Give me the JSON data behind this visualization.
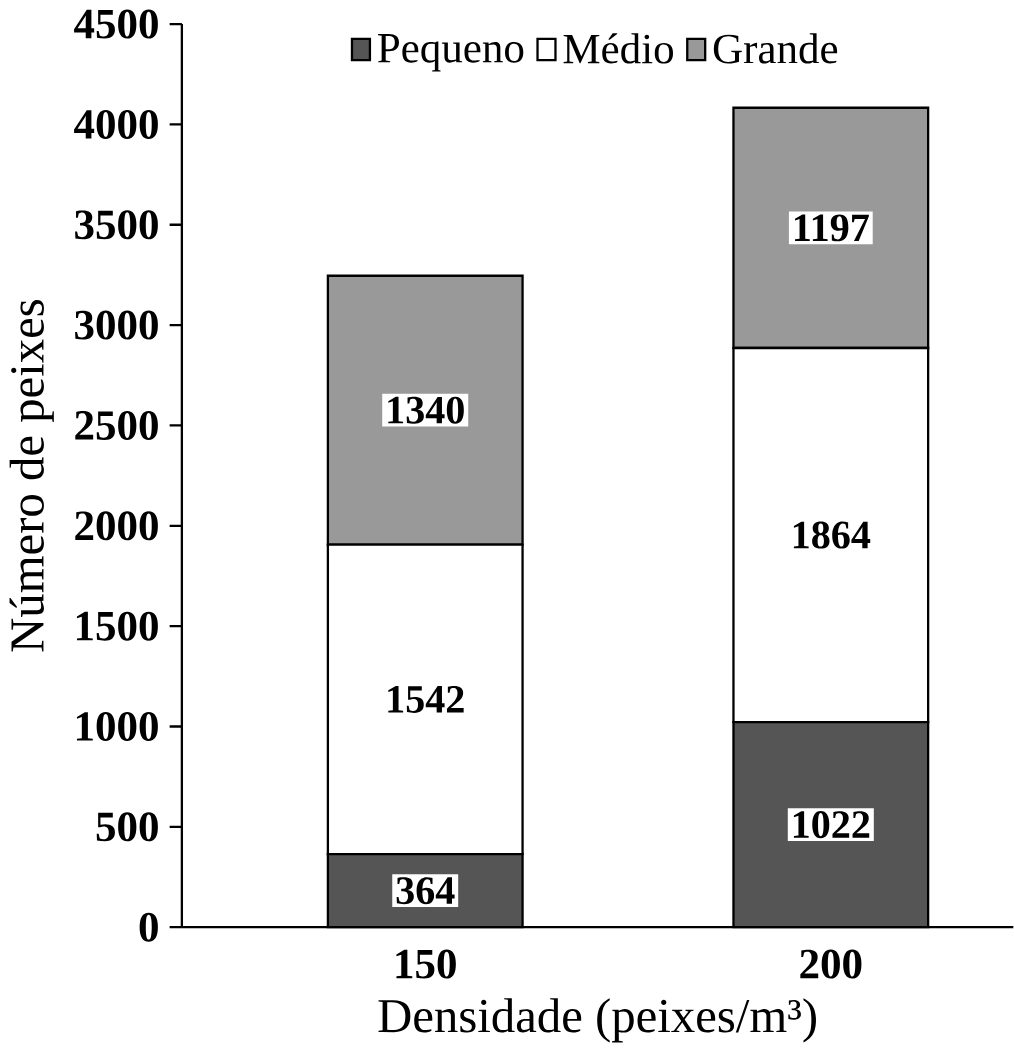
{
  "chart_data": {
    "type": "bar",
    "stacked": true,
    "xlabel": "Densidade (peixes/m³)",
    "ylabel": "Número de peixes",
    "categories": [
      "150",
      "200"
    ],
    "series": [
      {
        "name": "Pequeno",
        "color": "#555555",
        "values": [
          364,
          1022
        ]
      },
      {
        "name": "Médio",
        "color": "#ffffff",
        "values": [
          1542,
          1864
        ]
      },
      {
        "name": "Grande",
        "color": "#999999",
        "values": [
          1340,
          1197
        ]
      }
    ],
    "ylim": [
      0,
      4500
    ],
    "yticks": [
      0,
      500,
      1000,
      1500,
      2000,
      2500,
      3000,
      3500,
      4000,
      4500
    ],
    "data_labels": true,
    "legend": "top",
    "grid": false
  }
}
